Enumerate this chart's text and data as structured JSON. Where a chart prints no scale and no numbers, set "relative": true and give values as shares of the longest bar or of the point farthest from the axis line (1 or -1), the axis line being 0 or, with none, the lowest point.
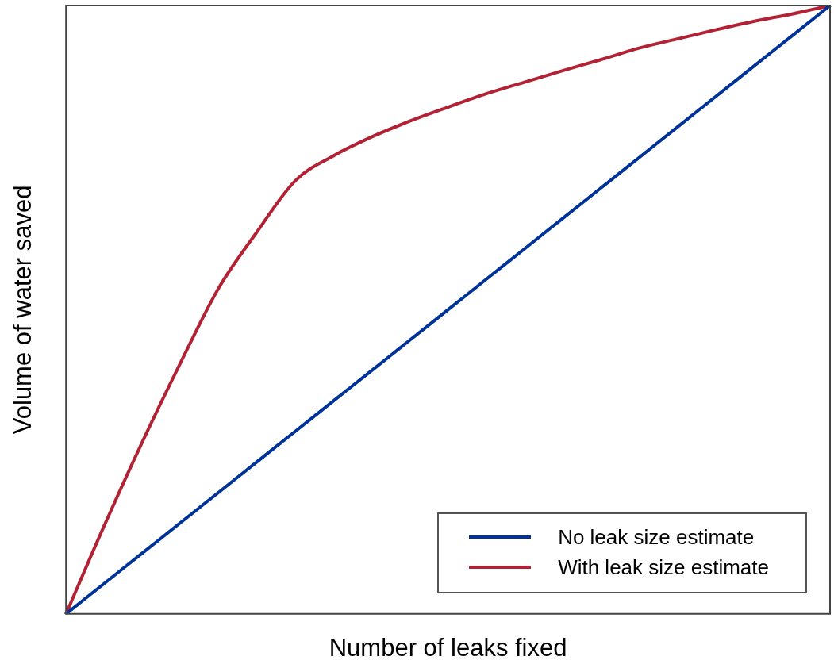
{
  "chart_data": {
    "type": "line",
    "relative": true,
    "xlabel": "Number of leaks fixed",
    "ylabel": "Volume of water saved",
    "categories": [
      null,
      null,
      null,
      null,
      null,
      null,
      null,
      null,
      null,
      null,
      null,
      null,
      null,
      null,
      null,
      null,
      null,
      null,
      null,
      null,
      null
    ],
    "series": [
      {
        "name": "No leak size estimate",
        "color": "#003399",
        "values": [
          0,
          0.05,
          0.1,
          0.15,
          0.2,
          0.25,
          0.3,
          0.35,
          0.4,
          0.45,
          0.5,
          0.55,
          0.6,
          0.65,
          0.7,
          0.75,
          0.8,
          0.85,
          0.9,
          0.95,
          1
        ]
      },
      {
        "name": "With leak size estimate",
        "color": "#b22234",
        "values": [
          0,
          0.145,
          0.283,
          0.413,
          0.536,
          0.628,
          0.712,
          0.753,
          0.784,
          0.81,
          0.833,
          0.855,
          0.874,
          0.893,
          0.911,
          0.93,
          0.945,
          0.96,
          0.974,
          0.986,
          1
        ]
      }
    ],
    "legend": "bottom right",
    "grid": false,
    "marker": "none",
    "line_style": "solid"
  }
}
